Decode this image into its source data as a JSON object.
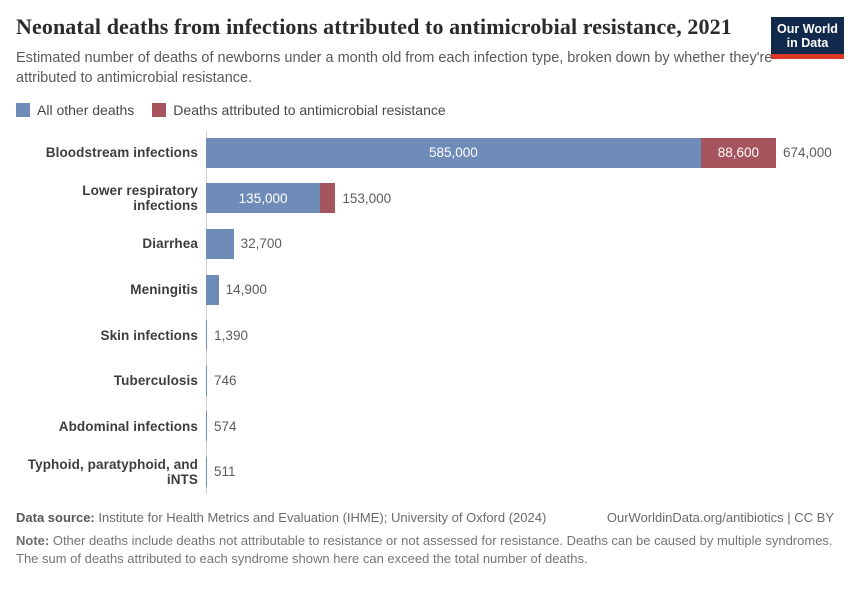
{
  "header": {
    "title": "Neonatal deaths from infections attributed to antimicrobial resistance, 2021",
    "subtitle": "Estimated number of deaths of newborns under a month old from each infection type, broken down by whether they're attributed to antimicrobial resistance.",
    "logo": {
      "line1": "Our World",
      "line2": "in Data",
      "bg_color": "#12294e",
      "accent_color": "#dc3627"
    }
  },
  "legend": [
    {
      "label": "All other deaths",
      "color": "#6f8bb8"
    },
    {
      "label": "Deaths attributed to antimicrobial resistance",
      "color": "#a6555e"
    }
  ],
  "chart_data": {
    "type": "bar",
    "orientation": "horizontal",
    "stacked": true,
    "title": "Neonatal deaths from infections attributed to antimicrobial resistance, 2021",
    "series_names": [
      "All other deaths",
      "Deaths attributed to antimicrobial resistance"
    ],
    "colors": {
      "other": "#6f8bb8",
      "amr": "#a6555e"
    },
    "xmax": 674000,
    "rows": [
      {
        "label": "Bloodstream infections",
        "other": 585000,
        "total": 674000,
        "other_text": "585,000",
        "amr_text": "88,600",
        "total_text": "674,000"
      },
      {
        "label": "Lower respiratory infections",
        "other": 135000,
        "total": 153000,
        "other_text": "135,000",
        "amr_text": null,
        "total_text": "153,000"
      },
      {
        "label": "Diarrhea",
        "other": null,
        "total": 32700,
        "other_text": null,
        "amr_text": null,
        "total_text": "32,700"
      },
      {
        "label": "Meningitis",
        "other": null,
        "total": 14900,
        "other_text": null,
        "amr_text": null,
        "total_text": "14,900"
      },
      {
        "label": "Skin infections",
        "other": null,
        "total": 1390,
        "other_text": null,
        "amr_text": null,
        "total_text": "1,390"
      },
      {
        "label": "Tuberculosis",
        "other": null,
        "total": 746,
        "other_text": null,
        "amr_text": null,
        "total_text": "746"
      },
      {
        "label": "Abdominal infections",
        "other": null,
        "total": 574,
        "other_text": null,
        "amr_text": null,
        "total_text": "574"
      },
      {
        "label": "Typhoid, paratyphoid, and iNTS",
        "other": null,
        "total": 511,
        "other_text": null,
        "amr_text": null,
        "total_text": "511"
      }
    ]
  },
  "footer": {
    "datasource_label": "Data source:",
    "datasource_value": " Institute for Health Metrics and Evaluation (IHME); University of Oxford (2024)",
    "link": "OurWorldinData.org/antibiotics | CC BY",
    "note_label": "Note:",
    "note_value": " Other deaths include deaths not attributable to resistance or not assessed for resistance. Deaths can be caused by multiple syndromes. The sum of deaths attributed to each syndrome shown here can exceed the total number of deaths."
  }
}
